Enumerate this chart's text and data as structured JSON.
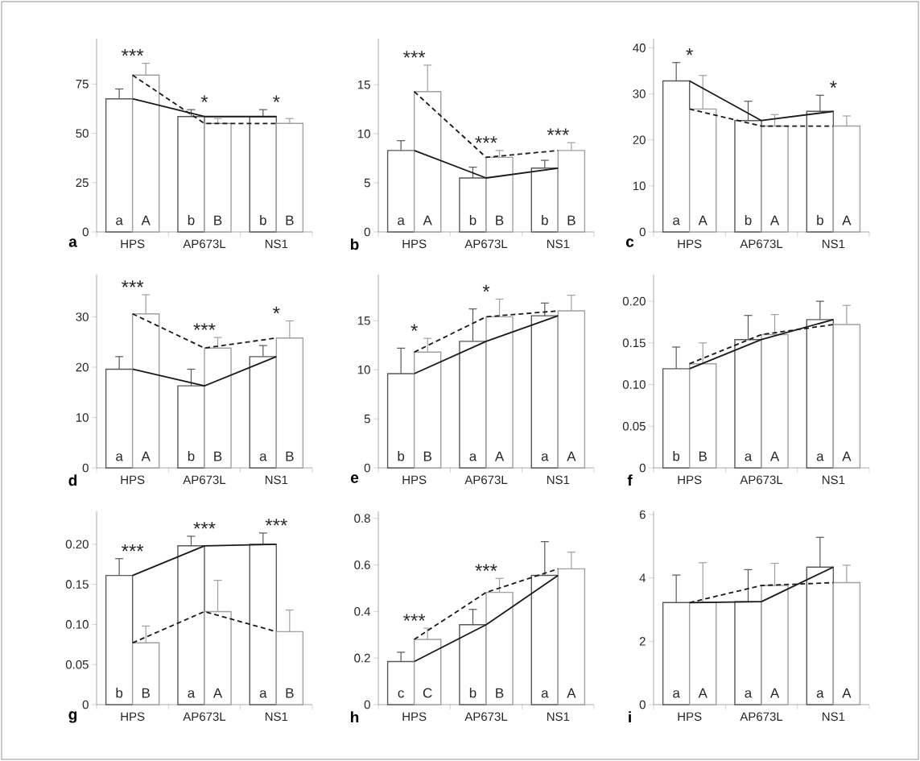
{
  "chart_data": [
    {
      "type": "bar",
      "title": "a",
      "categories": [
        "HPS",
        "AP673L",
        "NS1"
      ],
      "ylim": [
        0,
        98
      ],
      "yticks": [
        0,
        25,
        50,
        75
      ],
      "series": [
        {
          "color": "#595959",
          "values": [
            67.5,
            58.5,
            58.5
          ],
          "errors": [
            5,
            3.5,
            3.5
          ],
          "value_labels": [
            "a",
            "b",
            "b"
          ]
        },
        {
          "color": "#a0a0a0",
          "values": [
            79.5,
            55,
            55
          ],
          "errors": [
            6,
            2.5,
            2.5
          ],
          "value_labels": [
            "A",
            "B",
            "B"
          ]
        },
        {
          "type": "line",
          "color": "#1a1a1a",
          "line_style": "solid",
          "values": [
            67.5,
            58.5,
            58.5
          ]
        },
        {
          "type": "line",
          "color": "#1a1a1a",
          "line_style": "dashed",
          "values": [
            79.5,
            55,
            55
          ]
        }
      ],
      "annotations": [
        "***",
        "*",
        "*"
      ]
    },
    {
      "type": "bar",
      "title": "b",
      "categories": [
        "HPS",
        "AP673L",
        "NS1"
      ],
      "ylim": [
        0,
        19.7
      ],
      "yticks": [
        0,
        5,
        10,
        15
      ],
      "series": [
        {
          "color": "#595959",
          "values": [
            8.3,
            5.5,
            6.5
          ],
          "errors": [
            1.0,
            1.1,
            0.8
          ],
          "value_labels": [
            "a",
            "b",
            "b"
          ]
        },
        {
          "color": "#a0a0a0",
          "values": [
            14.3,
            7.6,
            8.3
          ],
          "errors": [
            2.7,
            0.7,
            0.8
          ],
          "value_labels": [
            "A",
            "B",
            "B"
          ]
        },
        {
          "type": "line",
          "color": "#1a1a1a",
          "line_style": "solid",
          "values": [
            8.3,
            5.5,
            6.5
          ]
        },
        {
          "type": "line",
          "color": "#1a1a1a",
          "line_style": "dashed",
          "values": [
            14.3,
            7.6,
            8.3
          ]
        }
      ],
      "annotations": [
        "***",
        "***",
        "***"
      ]
    },
    {
      "type": "bar",
      "title": "c",
      "categories": [
        "HPS",
        "AP673L",
        "NS1"
      ],
      "ylim": [
        0,
        42
      ],
      "yticks": [
        0,
        10,
        20,
        30,
        40
      ],
      "series": [
        {
          "color": "#595959",
          "values": [
            32.8,
            24.2,
            26.2
          ],
          "errors": [
            4.0,
            4.2,
            3.5
          ],
          "value_labels": [
            "a",
            "b",
            "b"
          ]
        },
        {
          "color": "#a0a0a0",
          "values": [
            26.7,
            23.0,
            23.0
          ],
          "errors": [
            7.3,
            2.5,
            2.2
          ],
          "value_labels": [
            "A",
            "A",
            "A"
          ]
        },
        {
          "type": "line",
          "color": "#1a1a1a",
          "line_style": "solid",
          "values": [
            32.8,
            24.2,
            26.2
          ]
        },
        {
          "type": "line",
          "color": "#1a1a1a",
          "line_style": "dashed",
          "values": [
            26.7,
            23.0,
            23.0
          ]
        }
      ],
      "annotations": [
        "*",
        "*"
      ]
    },
    {
      "type": "bar",
      "title": "d",
      "categories": [
        "HPS",
        "AP673L",
        "NS1"
      ],
      "ylim": [
        0,
        38.4
      ],
      "yticks": [
        0,
        10,
        20,
        30
      ],
      "series": [
        {
          "color": "#595959",
          "values": [
            19.6,
            16.3,
            22.1
          ],
          "errors": [
            2.5,
            3.3,
            2.2
          ],
          "value_labels": [
            "a",
            "b",
            "a"
          ]
        },
        {
          "color": "#a0a0a0",
          "values": [
            30.6,
            23.8,
            25.8
          ],
          "errors": [
            3.8,
            2.1,
            3.4
          ],
          "value_labels": [
            "A",
            "B",
            "B"
          ]
        },
        {
          "type": "line",
          "color": "#1a1a1a",
          "line_style": "solid",
          "values": [
            19.6,
            16.3,
            22.1
          ]
        },
        {
          "type": "line",
          "color": "#1a1a1a",
          "line_style": "dashed",
          "values": [
            30.6,
            23.8,
            25.8
          ]
        }
      ],
      "annotations": [
        "***",
        "***",
        "*"
      ]
    },
    {
      "type": "bar",
      "title": "e",
      "categories": [
        "HPS",
        "AP673L",
        "NS1"
      ],
      "ylim": [
        0,
        19.7
      ],
      "yticks": [
        0,
        5,
        10,
        15
      ],
      "series": [
        {
          "color": "#595959",
          "values": [
            9.6,
            12.9,
            15.5
          ],
          "errors": [
            2.6,
            3.3,
            1.3
          ],
          "value_labels": [
            "b",
            "a",
            "a"
          ]
        },
        {
          "color": "#a0a0a0",
          "values": [
            11.8,
            15.4,
            16.0
          ],
          "errors": [
            1.4,
            1.8,
            1.6
          ],
          "value_labels": [
            "B",
            "A",
            "A"
          ]
        },
        {
          "type": "line",
          "color": "#1a1a1a",
          "line_style": "solid",
          "values": [
            9.6,
            12.9,
            15.5
          ]
        },
        {
          "type": "line",
          "color": "#1a1a1a",
          "line_style": "dashed",
          "values": [
            11.8,
            15.4,
            16.0
          ]
        }
      ],
      "annotations": [
        "*",
        "*"
      ]
    },
    {
      "type": "bar",
      "title": "f",
      "categories": [
        "HPS",
        "AP673L",
        "NS1"
      ],
      "ylim": [
        0,
        0.232
      ],
      "yticks": [
        0,
        {
          "value": 0.05,
          "label": "0.05"
        },
        {
          "value": 0.1,
          "label": "0.10"
        },
        {
          "value": 0.15,
          "label": "0.15"
        },
        {
          "value": 0.2,
          "label": "0.20"
        }
      ],
      "series": [
        {
          "color": "#595959",
          "values": [
            0.119,
            0.154,
            0.178
          ],
          "errors": [
            0.026,
            0.029,
            0.022
          ],
          "value_labels": [
            "b",
            "a",
            "a"
          ]
        },
        {
          "color": "#a0a0a0",
          "values": [
            0.125,
            0.16,
            0.172
          ],
          "errors": [
            0.025,
            0.024,
            0.023
          ],
          "value_labels": [
            "B",
            "A",
            "A"
          ]
        },
        {
          "type": "line",
          "color": "#1a1a1a",
          "line_style": "solid",
          "values": [
            0.119,
            0.154,
            0.178
          ]
        },
        {
          "type": "line",
          "color": "#1a1a1a",
          "line_style": "dashed",
          "values": [
            0.125,
            0.16,
            0.172
          ]
        }
      ]
    },
    {
      "type": "bar",
      "title": "g",
      "categories": [
        "HPS",
        "AP673L",
        "NS1"
      ],
      "ylim": [
        0,
        0.241
      ],
      "yticks": [
        0,
        {
          "value": 0.05,
          "label": "0.05"
        },
        {
          "value": 0.1,
          "label": "0.10"
        },
        {
          "value": 0.15,
          "label": "0.15"
        },
        {
          "value": 0.2,
          "label": "0.20"
        }
      ],
      "series": [
        {
          "color": "#595959",
          "values": [
            0.161,
            0.198,
            0.2
          ],
          "errors": [
            0.021,
            0.012,
            0.014
          ],
          "value_labels": [
            "b",
            "a",
            "a"
          ]
        },
        {
          "color": "#a0a0a0",
          "values": [
            0.077,
            0.116,
            0.091
          ],
          "errors": [
            0.021,
            0.039,
            0.027
          ],
          "value_labels": [
            "B",
            "A",
            "B"
          ]
        },
        {
          "type": "line",
          "color": "#1a1a1a",
          "line_style": "solid",
          "values": [
            0.161,
            0.198,
            0.2
          ]
        },
        {
          "type": "line",
          "color": "#1a1a1a",
          "line_style": "dashed",
          "values": [
            0.077,
            0.116,
            0.091
          ]
        }
      ],
      "annotations": [
        "***",
        "***",
        "***"
      ]
    },
    {
      "type": "bar",
      "title": "h",
      "categories": [
        "HPS",
        "AP673L",
        "NS1"
      ],
      "ylim": [
        0,
        0.83
      ],
      "yticks": [
        0,
        0.2,
        0.4,
        0.6,
        0.8
      ],
      "series": [
        {
          "color": "#595959",
          "values": [
            0.185,
            0.343,
            0.555
          ],
          "errors": [
            0.04,
            0.066,
            0.145
          ],
          "value_labels": [
            "c",
            "b",
            "a"
          ]
        },
        {
          "color": "#a0a0a0",
          "values": [
            0.28,
            0.482,
            0.583
          ],
          "errors": [
            0.048,
            0.06,
            0.072
          ],
          "value_labels": [
            "C",
            "B",
            "A"
          ]
        },
        {
          "type": "line",
          "color": "#1a1a1a",
          "line_style": "solid",
          "values": [
            0.185,
            0.343,
            0.555
          ]
        },
        {
          "type": "line",
          "color": "#1a1a1a",
          "line_style": "dashed",
          "values": [
            0.28,
            0.482,
            0.583
          ]
        }
      ],
      "annotations": [
        "***",
        "***"
      ]
    },
    {
      "type": "bar",
      "title": "i",
      "categories": [
        "HPS",
        "AP673L",
        "NS1"
      ],
      "ylim": [
        0,
        6.1
      ],
      "yticks": [
        0,
        2,
        4,
        6
      ],
      "series": [
        {
          "color": "#595959",
          "values": [
            3.22,
            3.25,
            4.34
          ],
          "errors": [
            0.87,
            1.01,
            0.94
          ],
          "value_labels": [
            "a",
            "a",
            "a"
          ]
        },
        {
          "color": "#a0a0a0",
          "values": [
            3.22,
            3.76,
            3.85
          ],
          "errors": [
            1.26,
            0.7,
            0.55
          ],
          "value_labels": [
            "A",
            "A",
            "A"
          ]
        },
        {
          "type": "line",
          "color": "#1a1a1a",
          "line_style": "solid",
          "values": [
            3.22,
            3.25,
            4.34
          ]
        },
        {
          "type": "line",
          "color": "#1a1a1a",
          "line_style": "dashed",
          "values": [
            3.22,
            3.76,
            3.85
          ]
        }
      ]
    }
  ]
}
